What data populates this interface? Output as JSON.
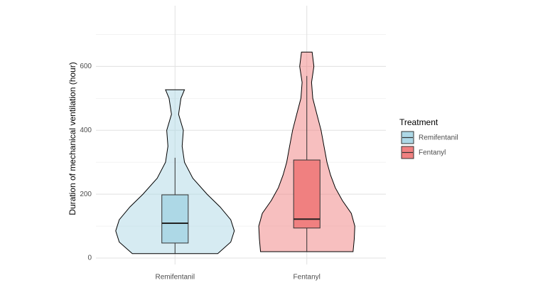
{
  "chart_data": {
    "type": "violin_box",
    "y_label": "Duration of mechanical ventilation (hour)",
    "categories": [
      "Remifentanil",
      "Fentanyl"
    ],
    "legend_title": "Treatment",
    "legend_position": "right",
    "grid": true,
    "ylim": [
      -20,
      790
    ],
    "yticks": [
      0,
      200,
      400,
      600
    ],
    "series": [
      {
        "name": "Remifentanil",
        "color": "#add8e6",
        "box": {
          "min": 14,
          "q1": 47,
          "median": 109,
          "q3": 198,
          "max": 314
        },
        "density_y": [
          14,
          50,
          85,
          120,
          160,
          200,
          250,
          300,
          350,
          400,
          450,
          500,
          527
        ],
        "density": [
          0.72,
          0.94,
          1,
          0.94,
          0.76,
          0.54,
          0.3,
          0.16,
          0.12,
          0.14,
          0.06,
          0.1,
          0.16
        ]
      },
      {
        "name": "Fentanyl",
        "color": "#f08080",
        "box": {
          "min": 20,
          "q1": 94,
          "median": 122,
          "q3": 307,
          "max": 570
        },
        "density_y": [
          20,
          60,
          100,
          140,
          180,
          220,
          260,
          300,
          350,
          400,
          450,
          500,
          550,
          600,
          645
        ],
        "density": [
          0.78,
          0.8,
          0.81,
          0.75,
          0.6,
          0.48,
          0.4,
          0.34,
          0.29,
          0.24,
          0.17,
          0.1,
          0.08,
          0.12,
          0.09
        ]
      }
    ]
  }
}
